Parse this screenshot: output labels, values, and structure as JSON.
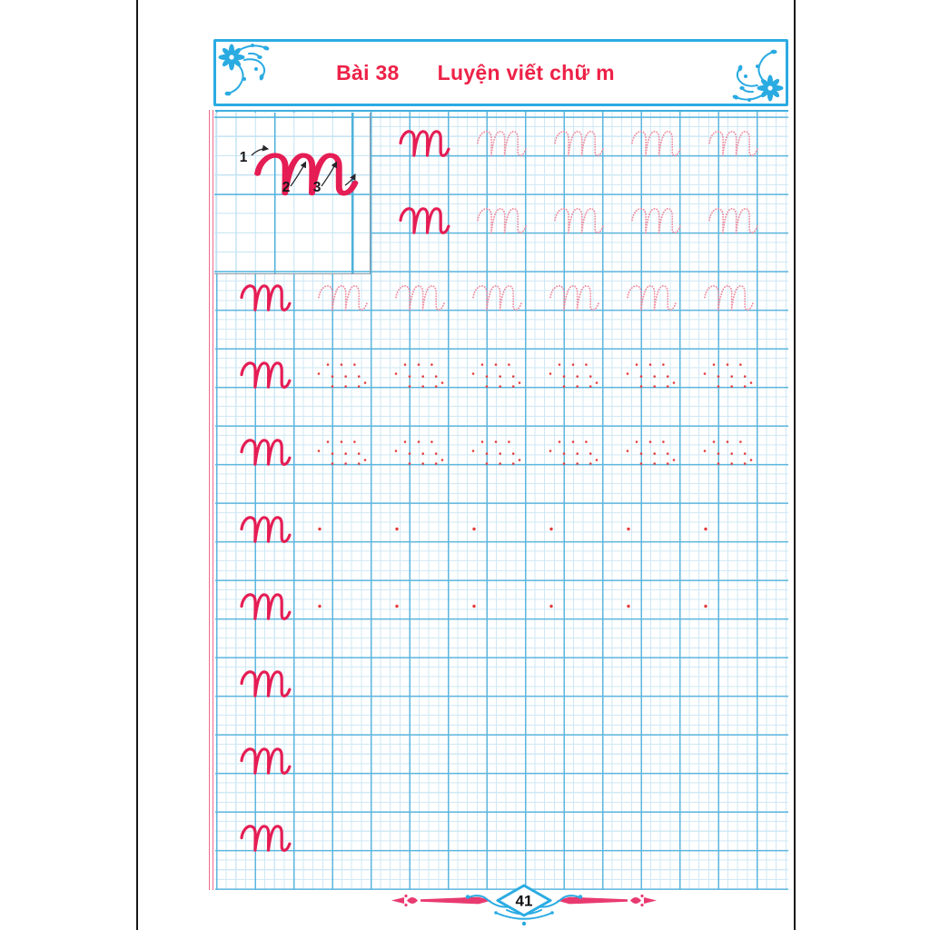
{
  "page": {
    "lesson_label": "Bài 38",
    "lesson_title": "Luyện viết chữ m",
    "practice_letter": "m"
  },
  "example": {
    "letter": "m",
    "stroke_numbers": [
      "1",
      "2",
      "3"
    ]
  },
  "practice": {
    "letter": "m",
    "rows": [
      {
        "start": "after-box",
        "pattern": [
          "solid",
          "trace",
          "trace",
          "trace",
          "trace"
        ]
      },
      {
        "start": "after-box",
        "pattern": [
          "solid",
          "trace",
          "trace",
          "trace",
          "trace"
        ]
      },
      {
        "start": "margin",
        "pattern": [
          "solid",
          "trace",
          "trace",
          "trace",
          "trace",
          "trace",
          "trace"
        ]
      },
      {
        "start": "margin",
        "pattern": [
          "solid",
          "dots",
          "dots",
          "dots",
          "dots",
          "dots",
          "dots"
        ]
      },
      {
        "start": "margin",
        "pattern": [
          "solid",
          "dots",
          "dots",
          "dots",
          "dots",
          "dots",
          "dots"
        ]
      },
      {
        "start": "margin",
        "pattern": [
          "solid",
          "start-dot",
          "start-dot",
          "start-dot",
          "start-dot",
          "start-dot",
          "start-dot"
        ]
      },
      {
        "start": "margin",
        "pattern": [
          "solid",
          "start-dot",
          "start-dot",
          "start-dot",
          "start-dot",
          "start-dot",
          "start-dot"
        ]
      },
      {
        "start": "margin",
        "pattern": [
          "solid"
        ]
      },
      {
        "start": "margin",
        "pattern": [
          "solid"
        ]
      },
      {
        "start": "margin",
        "pattern": [
          "solid"
        ]
      }
    ],
    "guide_dot_offsets": [
      [
        1,
        14
      ],
      [
        11,
        4
      ],
      [
        16,
        17
      ],
      [
        16,
        28
      ],
      [
        26,
        4
      ],
      [
        30.7,
        17
      ],
      [
        30.7,
        28
      ],
      [
        40.4,
        4
      ],
      [
        45.2,
        17
      ],
      [
        45.2,
        28
      ],
      [
        52,
        24
      ]
    ],
    "start_dot_offset": [
      2,
      15
    ]
  },
  "footer": {
    "page_number": "41"
  },
  "colors": {
    "header_blue": "#2aabe2",
    "title_red": "#ee2147",
    "letter_pink": "#e51d54",
    "trace_pink": "#ef8d9f",
    "dot_red": "#e43b3b",
    "grid_fine": "#cfe8f5",
    "grid_major": "#5cb6de",
    "margin_pink": "#ef6a8b",
    "footer_pink": "#e93a70"
  }
}
